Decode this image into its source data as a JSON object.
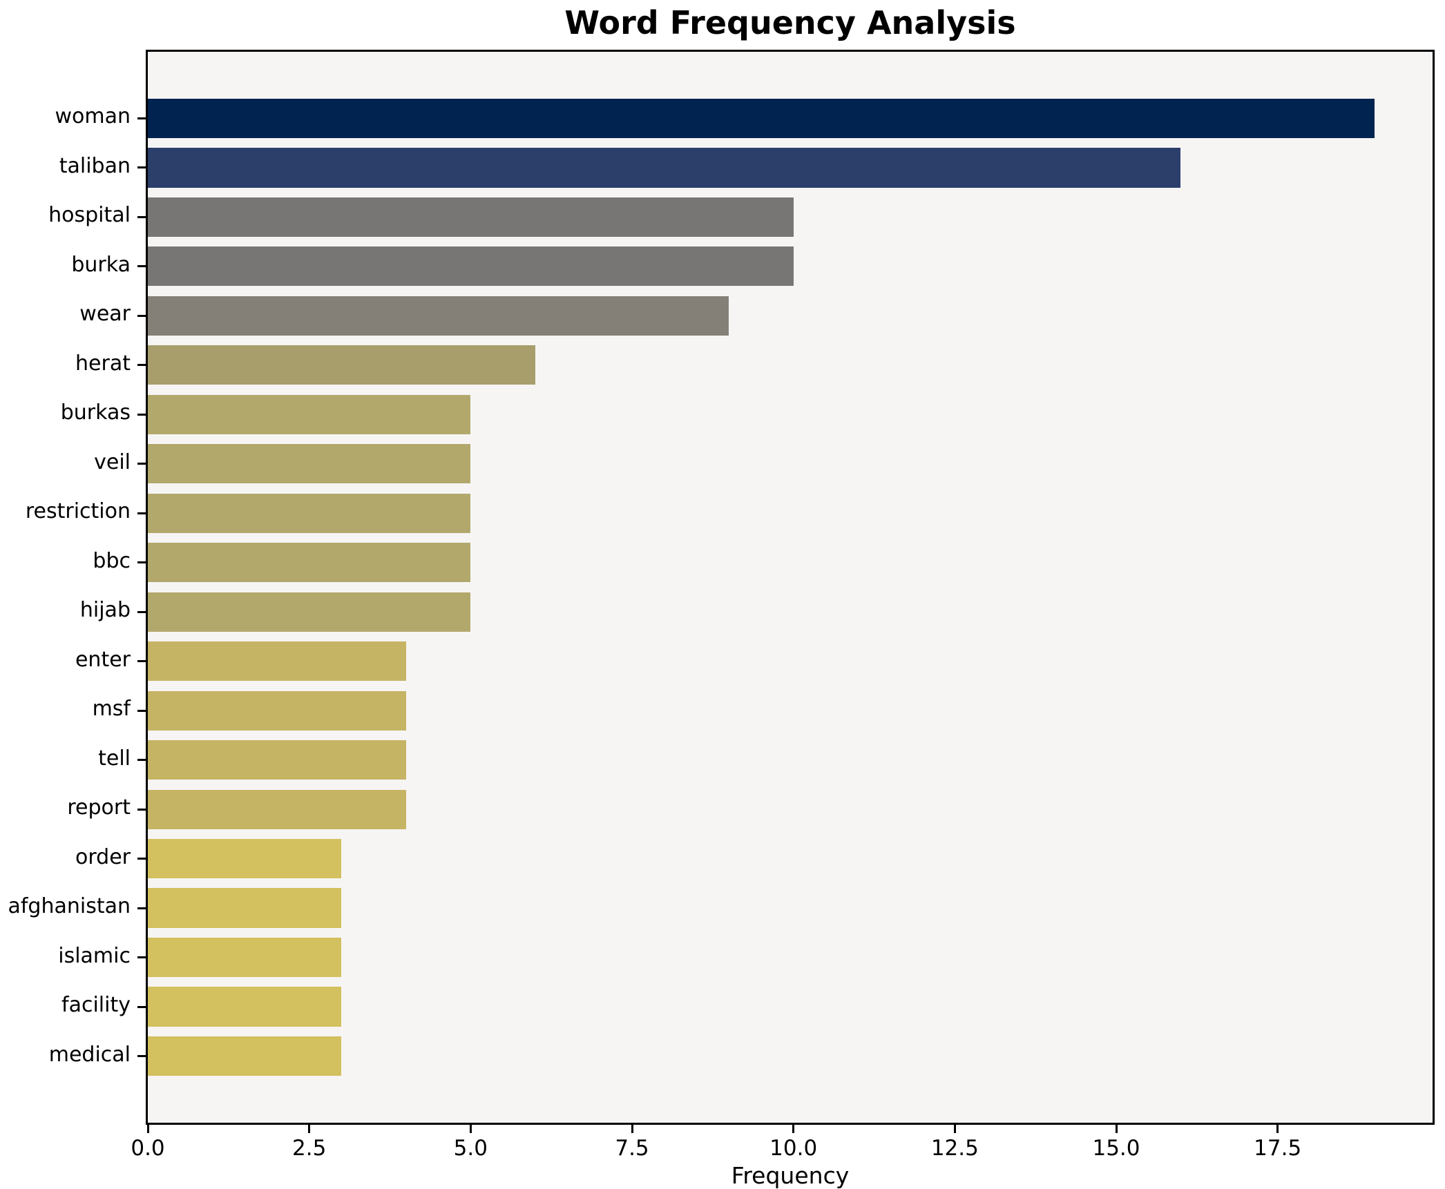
{
  "title": "Word Frequency Analysis",
  "chart_data": {
    "type": "bar",
    "orientation": "horizontal",
    "title": "Word Frequency Analysis",
    "xlabel": "Frequency",
    "ylabel": "",
    "categories": [
      "woman",
      "taliban",
      "hospital",
      "burka",
      "wear",
      "herat",
      "burkas",
      "veil",
      "restriction",
      "bbc",
      "hijab",
      "enter",
      "msf",
      "tell",
      "report",
      "order",
      "afghanistan",
      "islamic",
      "facility",
      "medical"
    ],
    "values": [
      19,
      16,
      10,
      10,
      9,
      6,
      5,
      5,
      5,
      5,
      5,
      4,
      4,
      4,
      4,
      3,
      3,
      3,
      3,
      3
    ],
    "bar_colors": [
      "#00234f",
      "#2c3f6b",
      "#777675",
      "#777675",
      "#848077",
      "#a89e6b",
      "#b2a86c",
      "#b2a86c",
      "#b2a86c",
      "#b2a86c",
      "#b2a86c",
      "#c6b465",
      "#c6b465",
      "#c6b465",
      "#c6b465",
      "#d3c05e",
      "#d3c05e",
      "#d3c05e",
      "#d3c05e",
      "#d3c05e"
    ],
    "xlim": [
      0,
      19.9
    ],
    "xticks": [
      0.0,
      2.5,
      5.0,
      7.5,
      10.0,
      12.5,
      15.0,
      17.5
    ],
    "xtick_labels": [
      "0.0",
      "2.5",
      "5.0",
      "7.5",
      "10.0",
      "12.5",
      "15.0",
      "17.5"
    ],
    "grid": false,
    "legend": null,
    "colormap": "cividis",
    "plot_background": "#f6f5f4",
    "figure_background": "#ffffff",
    "spine_color": "#000000",
    "bar_height_ratio": 0.8,
    "axis_margin_units": 1.35
  }
}
